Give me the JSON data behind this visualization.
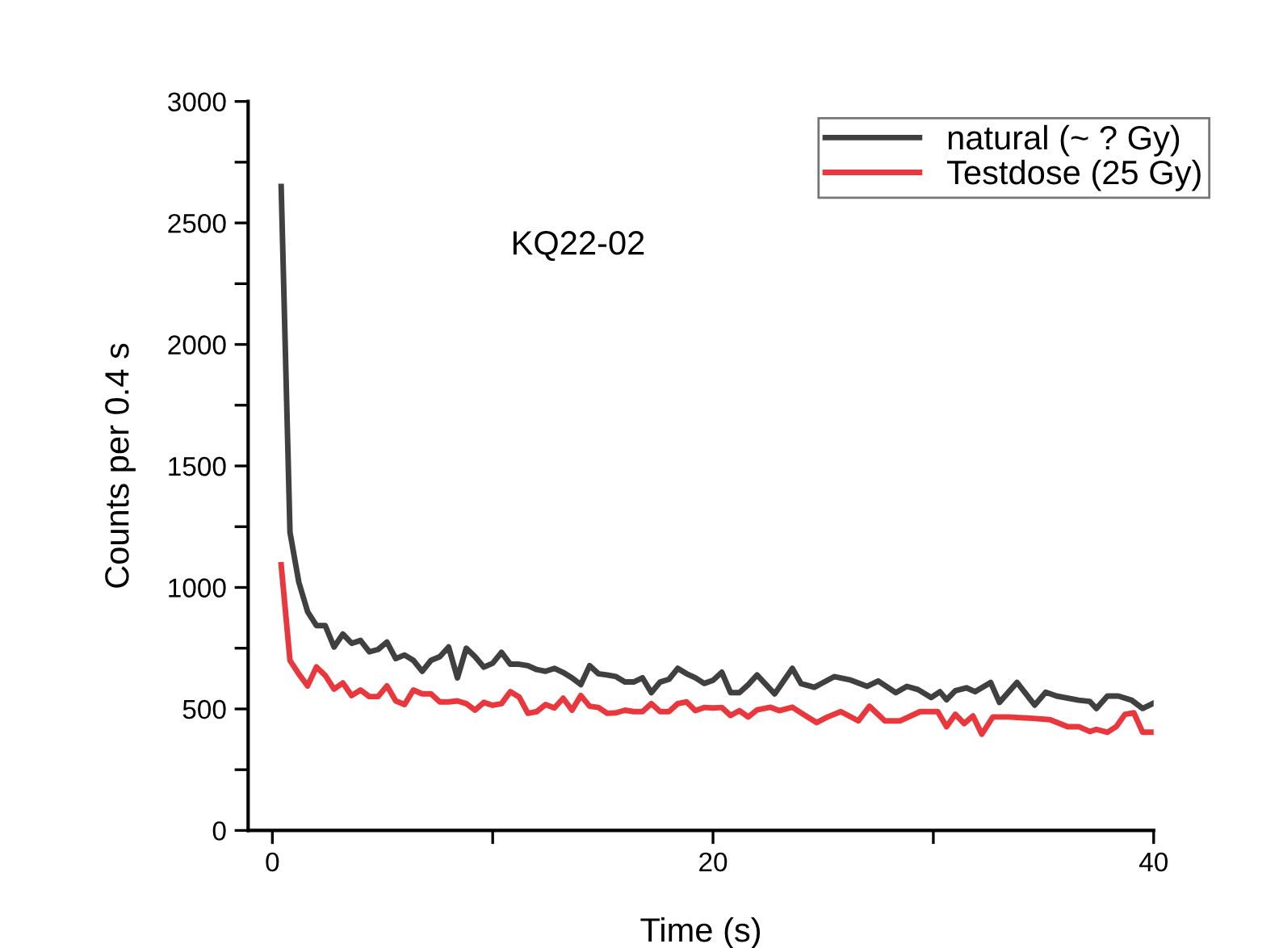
{
  "chart_data": {
    "type": "line",
    "xlabel": "Time (s)",
    "ylabel": "Counts per 0.4 s",
    "annotations": [
      "KQ22-02"
    ],
    "series": [
      {
        "name": "natural (~ ? Gy)",
        "color": "#404040",
        "x": [
          0.4,
          0.8,
          1.2,
          1.6,
          2.0,
          2.4,
          2.8,
          3.2,
          3.6,
          4.0,
          4.4,
          4.8,
          5.2,
          5.6,
          6.0,
          6.4,
          6.8,
          7.2,
          7.6,
          8.0,
          8.4,
          8.8,
          9.2,
          9.6,
          10.0,
          10.4,
          10.8,
          11.2,
          11.6,
          12.0,
          12.4,
          12.8,
          13.2,
          13.6,
          14.0,
          14.4,
          14.8,
          15.2,
          15.6,
          16.0,
          16.4,
          16.8,
          17.2,
          17.6,
          18.0,
          18.4,
          18.8,
          19.2,
          19.6,
          20.0,
          20.4,
          20.8,
          21.2,
          21.6,
          22.0,
          22.8,
          23.6,
          24.0,
          24.6,
          25.5,
          26.2,
          27.0,
          27.5,
          28.3,
          28.8,
          29.3,
          29.9,
          30.3,
          30.6,
          31.0,
          31.5,
          31.9,
          32.6,
          33.0,
          33.8,
          34.6,
          35.1,
          35.6,
          36.6,
          37.1,
          37.4,
          37.9,
          38.4,
          39.0,
          39.5,
          40.0
        ],
        "values": [
          2650,
          1227,
          1022,
          900,
          843,
          843,
          755,
          808,
          770,
          782,
          735,
          745,
          775,
          707,
          722,
          700,
          655,
          700,
          715,
          755,
          628,
          750,
          715,
          672,
          688,
          733,
          684,
          684,
          678,
          662,
          655,
          667,
          650,
          628,
          600,
          678,
          645,
          640,
          633,
          611,
          611,
          628,
          567,
          611,
          622,
          667,
          645,
          628,
          605,
          618,
          651,
          567,
          567,
          600,
          640,
          562,
          667,
          604,
          589,
          633,
          620,
          593,
          615,
          567,
          593,
          580,
          547,
          571,
          538,
          575,
          587,
          571,
          609,
          527,
          609,
          516,
          569,
          553,
          536,
          531,
          502,
          553,
          553,
          536,
          502,
          524
        ]
      },
      {
        "name": "Testdose (25 Gy)",
        "color": "#e8383d",
        "x": [
          0.4,
          0.8,
          1.2,
          1.6,
          2.0,
          2.4,
          2.8,
          3.2,
          3.6,
          4.0,
          4.4,
          4.8,
          5.2,
          5.6,
          6.0,
          6.4,
          6.8,
          7.2,
          7.6,
          8.0,
          8.4,
          8.8,
          9.2,
          9.6,
          10.0,
          10.4,
          10.8,
          11.2,
          11.6,
          12.0,
          12.4,
          12.8,
          13.2,
          13.6,
          14.0,
          14.4,
          14.8,
          15.2,
          15.6,
          16.0,
          16.4,
          16.8,
          17.2,
          17.6,
          18.0,
          18.4,
          18.8,
          19.2,
          19.6,
          20.0,
          20.4,
          20.8,
          21.2,
          21.6,
          22.0,
          22.6,
          23.0,
          23.6,
          24.1,
          24.7,
          25.2,
          25.8,
          26.6,
          27.1,
          27.8,
          28.5,
          29.4,
          30.2,
          30.6,
          31.0,
          31.4,
          31.8,
          32.2,
          32.7,
          33.4,
          34.4,
          35.3,
          36.1,
          36.6,
          37.1,
          37.4,
          37.9,
          38.3,
          38.7,
          39.1,
          39.5,
          40.0
        ],
        "values": [
          1093,
          700,
          644,
          595,
          673,
          638,
          582,
          607,
          555,
          578,
          551,
          551,
          595,
          533,
          518,
          578,
          562,
          562,
          529,
          529,
          533,
          522,
          495,
          527,
          515,
          522,
          571,
          549,
          482,
          489,
          518,
          504,
          544,
          495,
          555,
          511,
          506,
          482,
          484,
          495,
          489,
          489,
          522,
          489,
          489,
          522,
          529,
          493,
          506,
          504,
          506,
          473,
          493,
          467,
          496,
          507,
          493,
          507,
          478,
          444,
          467,
          489,
          451,
          511,
          451,
          451,
          489,
          489,
          427,
          478,
          440,
          471,
          396,
          467,
          467,
          462,
          456,
          427,
          427,
          407,
          416,
          404,
          427,
          478,
          484,
          404,
          404
        ]
      }
    ],
    "xlim": [
      -1.1,
      40
    ],
    "ylim": [
      0,
      3000
    ],
    "xticks": [
      0,
      {
        "value": 10,
        "label": null
      },
      20,
      {
        "value": 30,
        "label": null
      },
      40
    ],
    "yticks": [
      0,
      {
        "value": 250,
        "label": null
      },
      500,
      {
        "value": 750,
        "label": null
      },
      1000,
      {
        "value": 1250,
        "label": null
      },
      1500,
      {
        "value": 1750,
        "label": null
      },
      2000,
      {
        "value": 2250,
        "label": null
      },
      2500,
      {
        "value": 2750,
        "label": null
      },
      3000
    ],
    "grid": false,
    "legend": "top right",
    "line_style": "solid",
    "marker": "none"
  }
}
